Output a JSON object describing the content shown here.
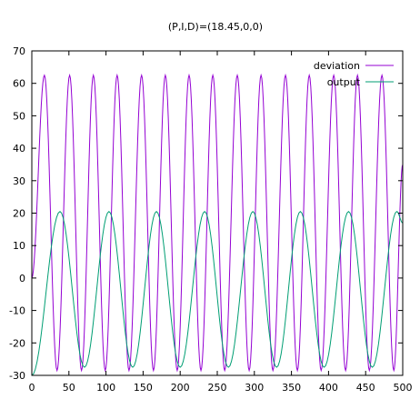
{
  "chart_data": {
    "type": "line",
    "title": "(P,I,D)=(18.45,0,0)",
    "xlabel": "",
    "ylabel": "",
    "xlim": [
      0,
      500
    ],
    "ylim": [
      -30,
      70
    ],
    "x_ticks": [
      0,
      50,
      100,
      150,
      200,
      250,
      300,
      350,
      400,
      450,
      500
    ],
    "y_ticks": [
      -30,
      -20,
      -10,
      0,
      10,
      20,
      30,
      40,
      50,
      60,
      70
    ],
    "grid": false,
    "legend_position": "top-right",
    "series": [
      {
        "name": "deviation",
        "color": "#9400d3",
        "points": [
          [
            0,
            0
          ],
          [
            17,
            62.5
          ],
          [
            34,
            -28.5
          ],
          [
            51,
            62.5
          ],
          [
            67,
            -28.5
          ],
          [
            83,
            62.5
          ],
          [
            99,
            -28.5
          ],
          [
            115,
            62.5
          ],
          [
            131,
            -28.5
          ],
          [
            148,
            62.5
          ],
          [
            164,
            -28.5
          ],
          [
            180,
            62.5
          ],
          [
            196,
            -28.5
          ],
          [
            212,
            62.5
          ],
          [
            228,
            -28.5
          ],
          [
            244,
            62.5
          ],
          [
            260,
            -28.5
          ],
          [
            277,
            62.5
          ],
          [
            293,
            -28.5
          ],
          [
            309,
            62.5
          ],
          [
            325,
            -28.5
          ],
          [
            342,
            62.5
          ],
          [
            358,
            -28.5
          ],
          [
            374,
            62.5
          ],
          [
            390,
            -28.5
          ],
          [
            407,
            62.5
          ],
          [
            423,
            -28.5
          ],
          [
            439,
            62.5
          ],
          [
            455,
            -28.5
          ],
          [
            472,
            62.5
          ],
          [
            488,
            -28.5
          ],
          [
            500,
            35
          ]
        ]
      },
      {
        "name": "output",
        "color": "#009e73",
        "points": [
          [
            0,
            -30
          ],
          [
            38,
            20.5
          ],
          [
            71,
            -27.5
          ],
          [
            104,
            20.5
          ],
          [
            136,
            -27.5
          ],
          [
            168,
            20.5
          ],
          [
            200,
            -27.5
          ],
          [
            233,
            20.5
          ],
          [
            265,
            -27.5
          ],
          [
            298,
            20.5
          ],
          [
            330,
            -27.5
          ],
          [
            362,
            20.5
          ],
          [
            394,
            -27.5
          ],
          [
            427,
            20.5
          ],
          [
            459,
            -27.5
          ],
          [
            492,
            20.5
          ],
          [
            500,
            17
          ]
        ]
      }
    ]
  }
}
